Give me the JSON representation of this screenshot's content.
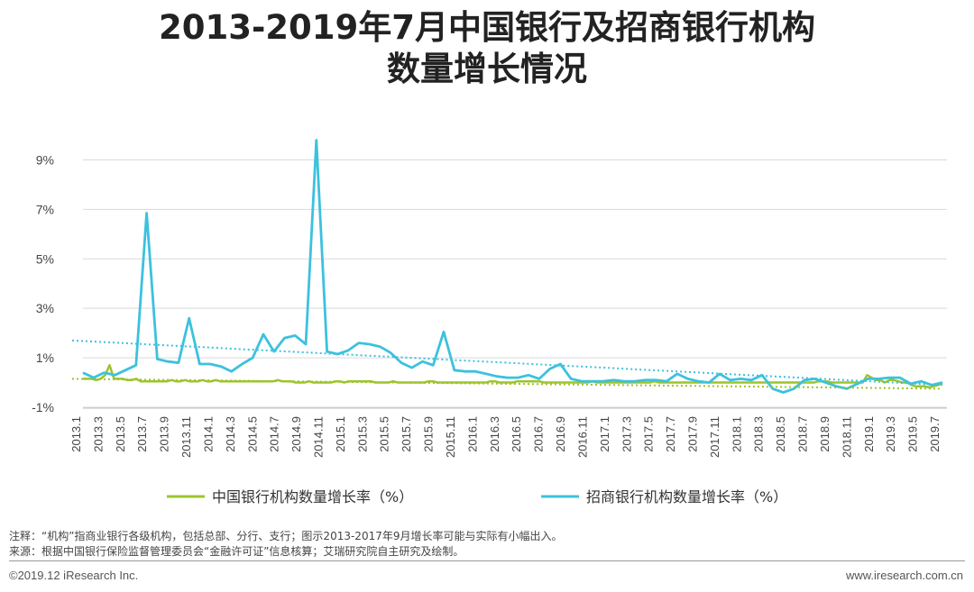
{
  "title_line1": "2013-2019年7月中国银行及招商银行机构",
  "title_line2": "数量增长情况",
  "chart_data": {
    "type": "line",
    "ylim": [
      -1,
      10
    ],
    "yticks": [
      -1,
      1,
      3,
      5,
      7,
      9
    ],
    "ytick_labels": [
      "-1%",
      "1%",
      "3%",
      "5%",
      "7%",
      "9%"
    ],
    "x_start": "2013.1",
    "x_tick_labels": [
      "2013.1",
      "2013.3",
      "2013.5",
      "2013.7",
      "2013.9",
      "2013.11",
      "2014.1",
      "2014.3",
      "2014.5",
      "2014.7",
      "2014.9",
      "2014.11",
      "2015.1",
      "2015.3",
      "2015.5",
      "2015.7",
      "2015.9",
      "2015.11",
      "2016.1",
      "2016.3",
      "2016.5",
      "2016.7",
      "2016.9",
      "2016.11",
      "2017.1",
      "2017.3",
      "2017.5",
      "2017.7",
      "2017.9",
      "2017.11",
      "2018.1",
      "2018.3",
      "2018.5",
      "2018.7",
      "2018.9",
      "2018.11",
      "2019.1",
      "2019.3",
      "2019.5",
      "2019.7"
    ],
    "legend_placement": "bottom",
    "grid": "horizontal",
    "series": [
      {
        "name": "中国银行机构数量增长率（%）",
        "color": "#9dc42c",
        "values": [
          0.15,
          0.15,
          0.15,
          0.1,
          0.15,
          0.3,
          0.7,
          0.15,
          0.15,
          0.15,
          0.1,
          0.1,
          0.15,
          0.05,
          0.05,
          0.05,
          0.05,
          0.05,
          0.05,
          0.05,
          0.1,
          0.05,
          0.05,
          0.1,
          0.05,
          0.05,
          0.05,
          0.1,
          0.05,
          0.05,
          0.1,
          0.05,
          0.05,
          0.05,
          0.05,
          0.05,
          0.05,
          0.05,
          0.05,
          0.05,
          0.05,
          0.05,
          0.05,
          0.05,
          0.1,
          0.05,
          0.05,
          0.05,
          0.0,
          0.0,
          0.0,
          0.05,
          0.0,
          0.0,
          0.0,
          0.0,
          0.0,
          0.05,
          0.05,
          0.0,
          0.05,
          0.05,
          0.05,
          0.05,
          0.05,
          0.05,
          0.0,
          0.0,
          0.0,
          0.0,
          0.05,
          0.0,
          0.0,
          0.0,
          0.0,
          0.0,
          0.0,
          0.0,
          0.05,
          0.05,
          0.0,
          0.0,
          0.0,
          0.0,
          0.0,
          0.0,
          0.0,
          0.0,
          0.0,
          0.0,
          0.0,
          0.0,
          0.05,
          0.05,
          0.0,
          0.0,
          0.0,
          0.0,
          0.05,
          0.05,
          0.05,
          0.05,
          0.05,
          0.05,
          0.0,
          0.0,
          0.0,
          0.0,
          0.0,
          0.0,
          0.0,
          0.0,
          0.0,
          0.0,
          0.0,
          0.05,
          0.0,
          0.0,
          0.0,
          0.0,
          0.0,
          0.0,
          0.0,
          0.0,
          0.0,
          0.0,
          0.0,
          0.0,
          0.0,
          0.05,
          0.0,
          0.0,
          0.0,
          0.0,
          0.0,
          0.0,
          0.0,
          0.0,
          0.0,
          0.0,
          0.0,
          0.0,
          0.0,
          0.0,
          0.0,
          0.0,
          0.0,
          0.0,
          0.0,
          0.0,
          0.0,
          0.0,
          0.0,
          0.0,
          0.0,
          0.0,
          0.0,
          0.0,
          0.0,
          0.0,
          0.0,
          0.0,
          0.0,
          0.0,
          0.0,
          0.0,
          0.05,
          0.05,
          0.05,
          0.0,
          0.0,
          0.0,
          0.0,
          0.0,
          0.0,
          0.0,
          0.0,
          0.3,
          0.2,
          0.1,
          0.1,
          0.0,
          0.1,
          0.1,
          0.05,
          0.0,
          0.0,
          -0.1,
          -0.15,
          -0.15,
          -0.15,
          -0.2,
          -0.15,
          -0.1,
          -0.05
        ]
      },
      {
        "name": "招商银行机构数量增长率（%）",
        "color": "#3cc1de",
        "values": [
          0.4,
          0.2,
          0.4,
          0.3,
          0.5,
          0.7,
          6.85,
          0.95,
          0.85,
          0.8,
          2.6,
          0.75,
          0.75,
          0.65,
          0.45,
          0.75,
          1.0,
          1.95,
          1.25,
          1.8,
          1.9,
          1.55,
          9.8,
          1.25,
          1.15,
          1.3,
          1.6,
          1.55,
          1.45,
          1.2,
          0.8,
          0.6,
          0.85,
          0.7,
          2.05,
          0.5,
          0.45,
          0.45,
          0.35,
          0.25,
          0.2,
          0.2,
          0.3,
          0.15,
          0.55,
          0.75,
          0.15,
          0.05,
          0.05,
          0.05,
          0.1,
          0.05,
          0.05,
          0.1,
          0.1,
          0.05,
          0.35,
          0.15,
          0.05,
          0.0,
          0.35,
          0.1,
          0.15,
          0.1,
          0.3,
          -0.25,
          -0.4,
          -0.25,
          0.1,
          0.15,
          0.0,
          -0.15,
          -0.25,
          -0.05,
          0.15,
          0.15,
          0.2,
          0.2,
          -0.05,
          0.05,
          -0.1,
          0.0
        ]
      }
    ],
    "trendlines": [
      {
        "series": 0,
        "start": 0.15,
        "end": -0.25
      },
      {
        "series": 1,
        "start": 1.7,
        "end": -0.1
      }
    ]
  },
  "notes": {
    "note1": "注释：“机构”指商业银行各级机构，包括总部、分行、支行；图示2013-2017年9月增长率可能与实际有小幅出入。",
    "note2": "来源：根据中国银行保险监督管理委员会“金融许可证”信息核算；艾瑞研究院自主研究及绘制。"
  },
  "footer": {
    "copyright": "©2019.12 iResearch Inc.",
    "website": "www.iresearch.com.cn"
  }
}
